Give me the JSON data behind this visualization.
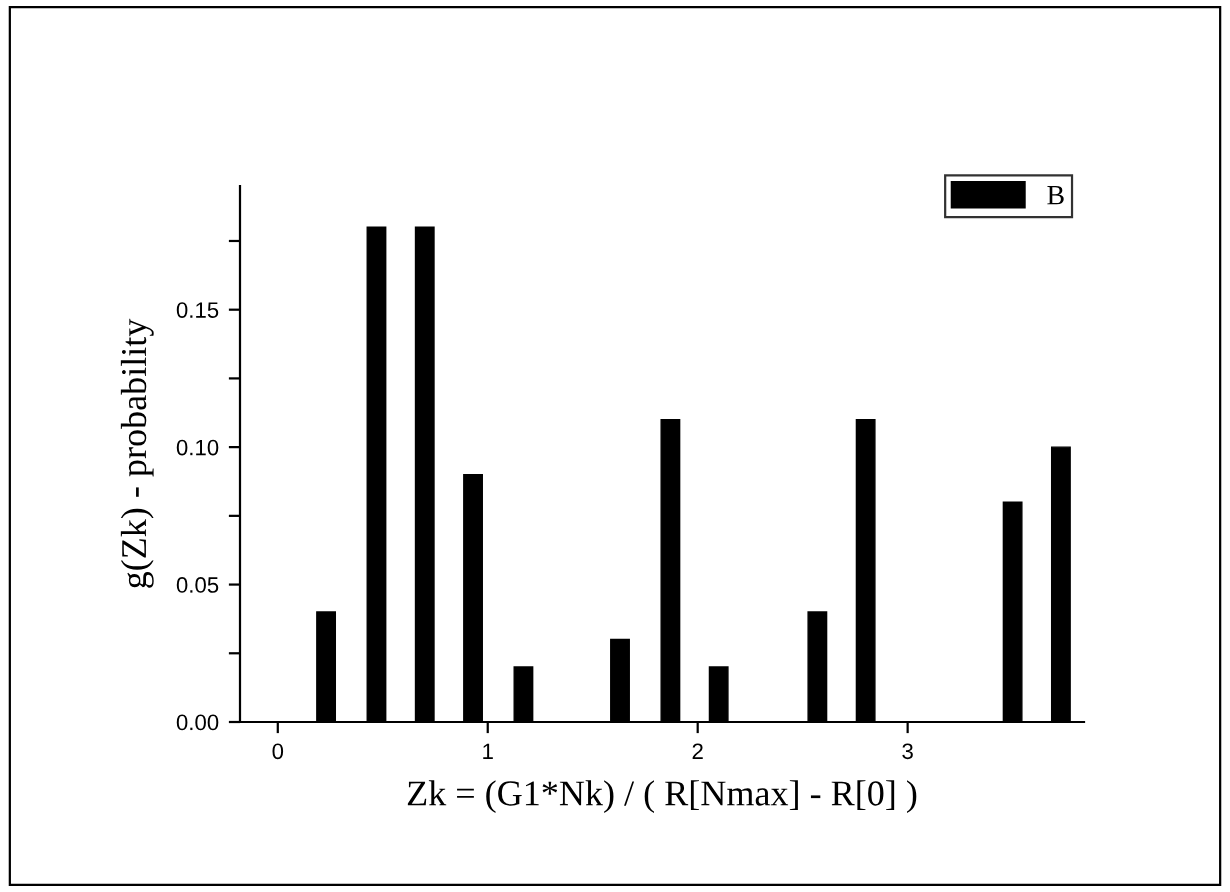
{
  "chart_data": {
    "type": "bar",
    "xlabel": "Zk = (G1*Nk) / ( R[Nmax] - R[0] )",
    "ylabel": "g(Zk) - probability",
    "x": [
      0,
      0.23,
      0.47,
      0.7,
      0.93,
      1.17,
      1.4,
      1.63,
      1.87,
      2.1,
      2.33,
      2.57,
      2.8,
      3.03,
      3.27,
      3.5,
      3.73
    ],
    "series": [
      {
        "name": "B",
        "color": "#000000",
        "values": [
          0,
          0.04,
          0.18,
          0.18,
          0.09,
          0.02,
          0,
          0.03,
          0.11,
          0.02,
          0,
          0.04,
          0.11,
          0,
          0,
          0.08,
          0.1
        ]
      }
    ],
    "xlim": [
      -0.18,
      3.84
    ],
    "xticks": [
      0,
      1,
      2,
      3
    ],
    "ylim": [
      0,
      0.195
    ],
    "yticks": [
      {
        "value": 0,
        "label": "0.00"
      },
      {
        "value": 0.025,
        "label": null
      },
      {
        "value": 0.05,
        "label": "0.05"
      },
      {
        "value": 0.075,
        "label": null
      },
      {
        "value": 0.1,
        "label": "0.10"
      },
      {
        "value": 0.125,
        "label": null
      },
      {
        "value": 0.15,
        "label": "0.15"
      },
      {
        "value": 0.175,
        "label": null
      }
    ],
    "grid": false,
    "legend": "top right"
  }
}
